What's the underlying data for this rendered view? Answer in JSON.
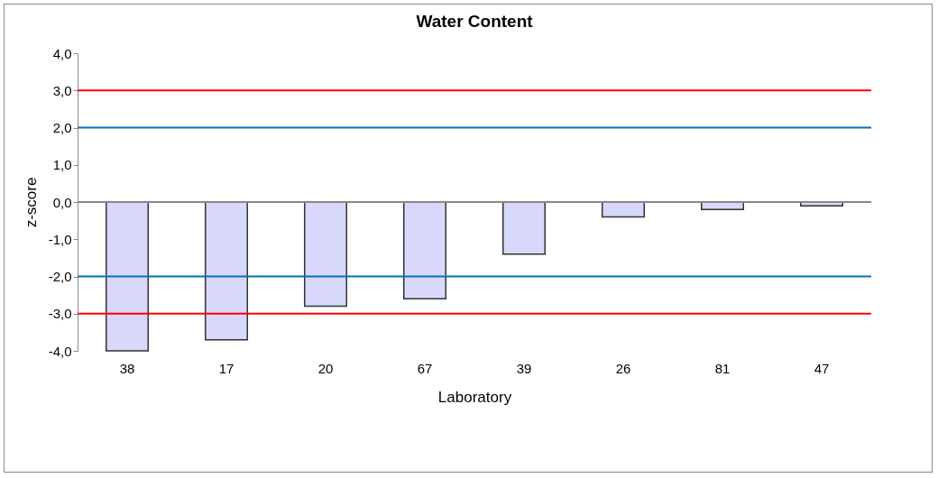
{
  "chart_data": {
    "type": "bar",
    "title": "Water Content",
    "xlabel": "Laboratory",
    "ylabel": "z-score",
    "categories": [
      "38",
      "17",
      "20",
      "67",
      "39",
      "26",
      "81",
      "47"
    ],
    "values": [
      -4.0,
      -3.7,
      -2.8,
      -2.6,
      -1.4,
      -0.4,
      -0.2,
      -0.1
    ],
    "color": "#d8d8fa",
    "ylim": [
      -4,
      4
    ],
    "yticks": [
      {
        "value": -4,
        "label": "-4,0"
      },
      {
        "value": -3,
        "label": "-3,0"
      },
      {
        "value": -2,
        "label": "-2,0"
      },
      {
        "value": -1,
        "label": "-1,0"
      },
      {
        "value": 0,
        "label": "0,0"
      },
      {
        "value": 1,
        "label": "1,0"
      },
      {
        "value": 2,
        "label": "2,0"
      },
      {
        "value": 3,
        "label": "3,0"
      },
      {
        "value": 4,
        "label": "4,0"
      }
    ],
    "ref_lines": [
      {
        "axis": "y",
        "value": 3,
        "color": "#ff0000"
      },
      {
        "axis": "y",
        "value": 2,
        "color": "#0070c0"
      },
      {
        "axis": "y",
        "value": -2,
        "color": "#0070c0"
      },
      {
        "axis": "y",
        "value": -3,
        "color": "#ff0000"
      }
    ],
    "grid": false
  }
}
